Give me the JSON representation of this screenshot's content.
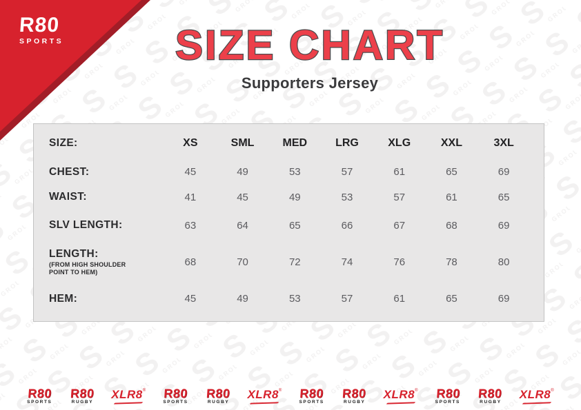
{
  "brand": {
    "logo_text": "R80",
    "logo_sub": "SPORTS"
  },
  "header": {
    "title": "SIZE CHART",
    "subtitle": "Supporters Jersey"
  },
  "table": {
    "size_label": "SIZE:",
    "columns": [
      "XS",
      "SML",
      "MED",
      "LRG",
      "XLG",
      "XXL",
      "3XL"
    ],
    "rows": [
      {
        "label": "CHEST:",
        "sublabel": "",
        "values": [
          "45",
          "49",
          "53",
          "57",
          "61",
          "65",
          "69"
        ]
      },
      {
        "label": "WAIST:",
        "sublabel": "",
        "values": [
          "41",
          "45",
          "49",
          "53",
          "57",
          "61",
          "65"
        ]
      },
      {
        "label": "SLV LENGTH:",
        "sublabel": "",
        "values": [
          "63",
          "64",
          "65",
          "66",
          "67",
          "68",
          "69"
        ]
      },
      {
        "label": "LENGTH:",
        "sublabel": "(FROM HIGH SHOULDER POINT TO HEM)",
        "values": [
          "68",
          "70",
          "72",
          "74",
          "76",
          "78",
          "80"
        ]
      },
      {
        "label": "HEM:",
        "sublabel": "",
        "values": [
          "45",
          "49",
          "53",
          "57",
          "61",
          "65",
          "69"
        ]
      }
    ]
  },
  "footer": {
    "logos": [
      {
        "type": "r80",
        "text": "R80",
        "sub": "SPORTS"
      },
      {
        "type": "r80",
        "text": "R80",
        "sub": "RUGBY"
      },
      {
        "type": "xlr8",
        "text": "XLR8",
        "reg": "®"
      },
      {
        "type": "r80",
        "text": "R80",
        "sub": "SPORTS"
      },
      {
        "type": "r80",
        "text": "R80",
        "sub": "RUGBY"
      },
      {
        "type": "xlr8",
        "text": "XLR8",
        "reg": "®"
      },
      {
        "type": "r80",
        "text": "R80",
        "sub": "SPORTS"
      },
      {
        "type": "r80",
        "text": "R80",
        "sub": "RUGBY"
      },
      {
        "type": "xlr8",
        "text": "XLR8",
        "reg": "®"
      },
      {
        "type": "r80",
        "text": "R80",
        "sub": "SPORTS"
      },
      {
        "type": "r80",
        "text": "R80",
        "sub": "RUGBY"
      },
      {
        "type": "xlr8",
        "text": "XLR8",
        "reg": "®"
      }
    ]
  },
  "colors": {
    "brand_red": "#d7222d",
    "brand_red_dark": "#a21d27",
    "title_red": "#ec404a",
    "title_outline": "#4c4c4e",
    "table_bg": "#e8e7e7",
    "table_border": "#c2c2c2",
    "label_text": "#2b2b2d",
    "value_text": "#5b5b5f",
    "watermark_gray": "#f2f1f1"
  }
}
